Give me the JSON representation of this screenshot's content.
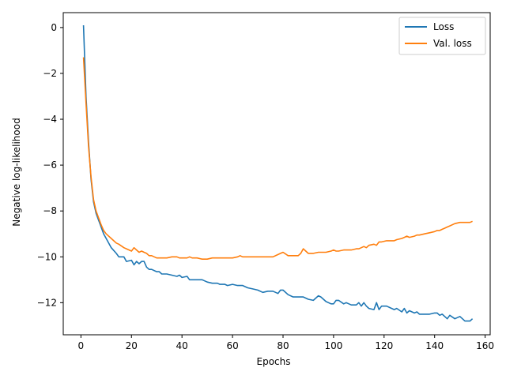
{
  "chart_data": {
    "type": "line",
    "title": "",
    "xlabel": "Epochs",
    "ylabel": "Negative log-likelihood",
    "xlim": [
      -7,
      162
    ],
    "ylim": [
      -13.4,
      0.65
    ],
    "xticks": [
      0,
      20,
      40,
      60,
      80,
      100,
      120,
      140,
      160
    ],
    "yticks": [
      0,
      -2,
      -4,
      -6,
      -8,
      -10,
      -12
    ],
    "legend": "top-right",
    "grid": false,
    "series": [
      {
        "name": "Loss",
        "color": "#1f77b4",
        "x": [
          1,
          2,
          3,
          4,
          5,
          6,
          7,
          8,
          9,
          10,
          12,
          14,
          15,
          17,
          18,
          20,
          21,
          22,
          23,
          24,
          25,
          26,
          27,
          28,
          30,
          31,
          32,
          34,
          36,
          38,
          39,
          40,
          42,
          43,
          44,
          46,
          48,
          50,
          52,
          54,
          55,
          57,
          58,
          60,
          62,
          63,
          64,
          66,
          68,
          70,
          72,
          74,
          76,
          78,
          79,
          80,
          82,
          84,
          86,
          87,
          88,
          90,
          92,
          94,
          95,
          97,
          99,
          100,
          101,
          102,
          104,
          105,
          107,
          109,
          110,
          111,
          112,
          113,
          114,
          116,
          117,
          118,
          119,
          121,
          123,
          124,
          125,
          127,
          128,
          129,
          130,
          132,
          133,
          134,
          136,
          138,
          140,
          141,
          142,
          143,
          144,
          145,
          146,
          148,
          150,
          151,
          152,
          154,
          155
        ],
        "y": [
          0.1,
          -3.0,
          -5.0,
          -6.6,
          -7.6,
          -8.1,
          -8.4,
          -8.7,
          -9.0,
          -9.2,
          -9.6,
          -9.85,
          -10.0,
          -10.0,
          -10.2,
          -10.15,
          -10.35,
          -10.2,
          -10.3,
          -10.2,
          -10.2,
          -10.45,
          -10.55,
          -10.55,
          -10.65,
          -10.65,
          -10.75,
          -10.75,
          -10.8,
          -10.85,
          -10.8,
          -10.9,
          -10.85,
          -11.0,
          -11.0,
          -11.0,
          -11.0,
          -11.1,
          -11.15,
          -11.15,
          -11.2,
          -11.2,
          -11.25,
          -11.2,
          -11.25,
          -11.25,
          -11.25,
          -11.35,
          -11.4,
          -11.45,
          -11.55,
          -11.5,
          -11.5,
          -11.6,
          -11.45,
          -11.45,
          -11.65,
          -11.75,
          -11.75,
          -11.75,
          -11.75,
          -11.85,
          -11.9,
          -11.7,
          -11.75,
          -11.95,
          -12.05,
          -12.05,
          -11.9,
          -11.9,
          -12.05,
          -12.0,
          -12.1,
          -12.1,
          -12.0,
          -12.15,
          -12.0,
          -12.15,
          -12.25,
          -12.3,
          -12.0,
          -12.3,
          -12.15,
          -12.15,
          -12.25,
          -12.3,
          -12.25,
          -12.4,
          -12.25,
          -12.45,
          -12.35,
          -12.45,
          -12.4,
          -12.5,
          -12.5,
          -12.5,
          -12.45,
          -12.45,
          -12.55,
          -12.5,
          -12.6,
          -12.7,
          -12.55,
          -12.7,
          -12.6,
          -12.7,
          -12.8,
          -12.8,
          -12.7
        ]
      },
      {
        "name": "Val. loss",
        "color": "#ff7f0e",
        "x": [
          1,
          2,
          3,
          4,
          5,
          6,
          7,
          8,
          9,
          10,
          12,
          14,
          15,
          17,
          18,
          20,
          21,
          22,
          23,
          24,
          25,
          26,
          27,
          28,
          30,
          31,
          32,
          34,
          36,
          38,
          39,
          40,
          42,
          43,
          44,
          46,
          48,
          50,
          52,
          54,
          55,
          57,
          58,
          60,
          62,
          63,
          64,
          66,
          68,
          70,
          72,
          74,
          76,
          78,
          79,
          80,
          82,
          84,
          86,
          87,
          88,
          90,
          92,
          94,
          95,
          97,
          99,
          100,
          101,
          102,
          104,
          105,
          107,
          109,
          110,
          111,
          112,
          113,
          114,
          116,
          117,
          118,
          119,
          121,
          123,
          124,
          125,
          127,
          128,
          129,
          130,
          132,
          133,
          134,
          136,
          138,
          140,
          141,
          142,
          143,
          144,
          145,
          146,
          148,
          150,
          151,
          152,
          154,
          155
        ],
        "y": [
          -1.3,
          -3.3,
          -5.2,
          -6.5,
          -7.5,
          -8.0,
          -8.3,
          -8.6,
          -8.85,
          -9.0,
          -9.2,
          -9.4,
          -9.45,
          -9.6,
          -9.65,
          -9.75,
          -9.6,
          -9.7,
          -9.8,
          -9.75,
          -9.8,
          -9.85,
          -9.95,
          -9.95,
          -10.05,
          -10.05,
          -10.05,
          -10.05,
          -10.0,
          -10.0,
          -10.05,
          -10.05,
          -10.05,
          -10.0,
          -10.05,
          -10.05,
          -10.1,
          -10.1,
          -10.05,
          -10.05,
          -10.05,
          -10.05,
          -10.05,
          -10.05,
          -10.0,
          -9.95,
          -10.0,
          -10.0,
          -10.0,
          -10.0,
          -10.0,
          -10.0,
          -10.0,
          -9.9,
          -9.85,
          -9.8,
          -9.95,
          -9.95,
          -9.95,
          -9.85,
          -9.65,
          -9.85,
          -9.85,
          -9.8,
          -9.8,
          -9.8,
          -9.75,
          -9.7,
          -9.75,
          -9.75,
          -9.7,
          -9.7,
          -9.7,
          -9.65,
          -9.65,
          -9.6,
          -9.55,
          -9.6,
          -9.5,
          -9.45,
          -9.5,
          -9.35,
          -9.35,
          -9.3,
          -9.3,
          -9.3,
          -9.25,
          -9.2,
          -9.15,
          -9.1,
          -9.15,
          -9.1,
          -9.05,
          -9.05,
          -9.0,
          -8.95,
          -8.9,
          -8.85,
          -8.85,
          -8.8,
          -8.75,
          -8.7,
          -8.65,
          -8.55,
          -8.5,
          -8.5,
          -8.5,
          -8.5,
          -8.45
        ]
      }
    ]
  }
}
